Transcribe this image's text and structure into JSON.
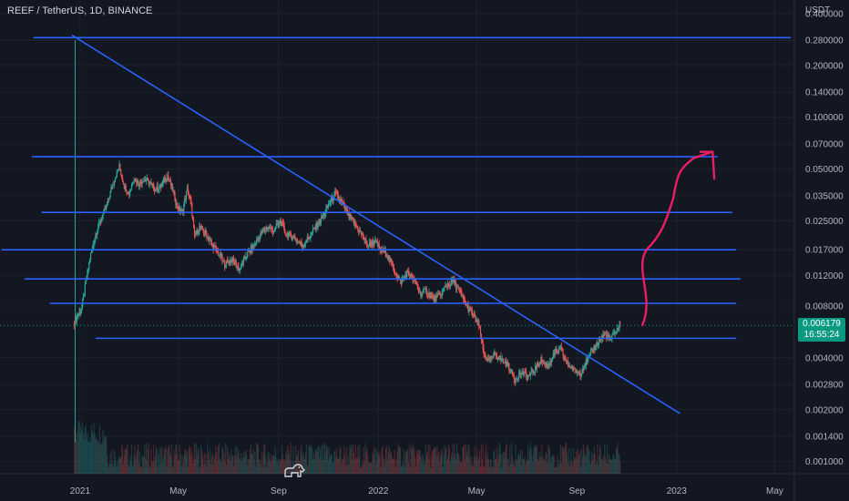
{
  "title": "REEF / TetherUS, 1D, BINANCE",
  "colors": {
    "background": "#131722",
    "grid": "#1e222d",
    "up": "#26a69a",
    "down": "#ef5350",
    "drawing": "#2962ff",
    "arrow": "#e91e63",
    "price_tag": "#089981"
  },
  "price_tag": {
    "price": "0.006179",
    "countdown": "16:55:24"
  },
  "chart_data": {
    "type": "candlestick",
    "symbol": "REEF / TetherUS",
    "interval": "1D",
    "exchange": "BINANCE",
    "yscale": "log",
    "ylabel_unit": "USDT",
    "ylim": [
      0.00085,
      0.48
    ],
    "xlim": [
      "2020-09-25",
      "2023-05-25"
    ],
    "y_ticks": [
      "0.400000",
      "0.280000",
      "0.200000",
      "0.140000",
      "0.100000",
      "0.070000",
      "0.050000",
      "0.035000",
      "0.025000",
      "0.017000",
      "0.012000",
      "0.008000",
      "0.006179",
      "0.004000",
      "0.002800",
      "0.002000",
      "0.001400",
      "0.001000"
    ],
    "x_ticks": [
      {
        "label": "2021",
        "date": "2021-01-01"
      },
      {
        "label": "May",
        "date": "2021-05-01"
      },
      {
        "label": "Sep",
        "date": "2021-09-01"
      },
      {
        "label": "2022",
        "date": "2022-01-01"
      },
      {
        "label": "May",
        "date": "2022-05-01"
      },
      {
        "label": "Sep",
        "date": "2022-09-01"
      },
      {
        "label": "2023",
        "date": "2023-01-01"
      },
      {
        "label": "May",
        "date": "2023-05-01"
      }
    ],
    "price_path": [
      [
        "2020-12-25",
        0.0065
      ],
      [
        "2021-01-03",
        0.0078
      ],
      [
        "2021-01-08",
        0.011
      ],
      [
        "2021-01-14",
        0.016
      ],
      [
        "2021-01-20",
        0.021
      ],
      [
        "2021-01-26",
        0.025
      ],
      [
        "2021-02-02",
        0.03
      ],
      [
        "2021-02-08",
        0.038
      ],
      [
        "2021-02-13",
        0.045
      ],
      [
        "2021-02-18",
        0.052
      ],
      [
        "2021-02-24",
        0.04
      ],
      [
        "2021-03-02",
        0.036
      ],
      [
        "2021-03-08",
        0.045
      ],
      [
        "2021-03-14",
        0.041
      ],
      [
        "2021-03-20",
        0.044
      ],
      [
        "2021-03-26",
        0.042
      ],
      [
        "2021-04-03",
        0.038
      ],
      [
        "2021-04-10",
        0.04
      ],
      [
        "2021-04-18",
        0.046
      ],
      [
        "2021-04-24",
        0.038
      ],
      [
        "2021-04-30",
        0.03
      ],
      [
        "2021-05-06",
        0.028
      ],
      [
        "2021-05-12",
        0.038
      ],
      [
        "2021-05-17",
        0.031
      ],
      [
        "2021-05-21",
        0.02
      ],
      [
        "2021-05-27",
        0.023
      ],
      [
        "2021-06-04",
        0.021
      ],
      [
        "2021-06-12",
        0.018
      ],
      [
        "2021-06-20",
        0.016
      ],
      [
        "2021-06-27",
        0.014
      ],
      [
        "2021-07-06",
        0.015
      ],
      [
        "2021-07-15",
        0.013
      ],
      [
        "2021-07-24",
        0.016
      ],
      [
        "2021-08-02",
        0.018
      ],
      [
        "2021-08-10",
        0.021
      ],
      [
        "2021-08-18",
        0.023
      ],
      [
        "2021-08-26",
        0.022
      ],
      [
        "2021-09-03",
        0.025
      ],
      [
        "2021-09-10",
        0.021
      ],
      [
        "2021-09-20",
        0.02
      ],
      [
        "2021-09-30",
        0.018
      ],
      [
        "2021-10-08",
        0.02
      ],
      [
        "2021-10-16",
        0.023
      ],
      [
        "2021-10-24",
        0.026
      ],
      [
        "2021-11-01",
        0.031
      ],
      [
        "2021-11-09",
        0.036
      ],
      [
        "2021-11-17",
        0.032
      ],
      [
        "2021-11-25",
        0.027
      ],
      [
        "2021-12-03",
        0.024
      ],
      [
        "2021-12-11",
        0.021
      ],
      [
        "2021-12-19",
        0.018
      ],
      [
        "2021-12-27",
        0.019
      ],
      [
        "2022-01-04",
        0.017
      ],
      [
        "2022-01-12",
        0.016
      ],
      [
        "2022-01-20",
        0.013
      ],
      [
        "2022-01-28",
        0.011
      ],
      [
        "2022-02-05",
        0.0125
      ],
      [
        "2022-02-13",
        0.0115
      ],
      [
        "2022-02-21",
        0.0095
      ],
      [
        "2022-03-01",
        0.0098
      ],
      [
        "2022-03-09",
        0.0088
      ],
      [
        "2022-03-17",
        0.0092
      ],
      [
        "2022-03-25",
        0.0105
      ],
      [
        "2022-04-02",
        0.0112
      ],
      [
        "2022-04-10",
        0.0098
      ],
      [
        "2022-04-18",
        0.0082
      ],
      [
        "2022-04-26",
        0.0072
      ],
      [
        "2022-05-04",
        0.0062
      ],
      [
        "2022-05-10",
        0.0042
      ],
      [
        "2022-05-16",
        0.0038
      ],
      [
        "2022-05-24",
        0.0042
      ],
      [
        "2022-06-01",
        0.0039
      ],
      [
        "2022-06-09",
        0.0036
      ],
      [
        "2022-06-17",
        0.003
      ],
      [
        "2022-06-25",
        0.0033
      ],
      [
        "2022-07-03",
        0.0031
      ],
      [
        "2022-07-11",
        0.0034
      ],
      [
        "2022-07-19",
        0.0039
      ],
      [
        "2022-07-27",
        0.0036
      ],
      [
        "2022-08-04",
        0.0042
      ],
      [
        "2022-08-12",
        0.0045
      ],
      [
        "2022-08-20",
        0.0037
      ],
      [
        "2022-08-28",
        0.0034
      ],
      [
        "2022-09-05",
        0.0033
      ],
      [
        "2022-09-13",
        0.0038
      ],
      [
        "2022-09-21",
        0.0045
      ],
      [
        "2022-09-29",
        0.0051
      ],
      [
        "2022-10-05",
        0.0055
      ],
      [
        "2022-10-12",
        0.0051
      ],
      [
        "2022-10-19",
        0.0058
      ],
      [
        "2022-10-25",
        0.0062
      ]
    ]
  }
}
